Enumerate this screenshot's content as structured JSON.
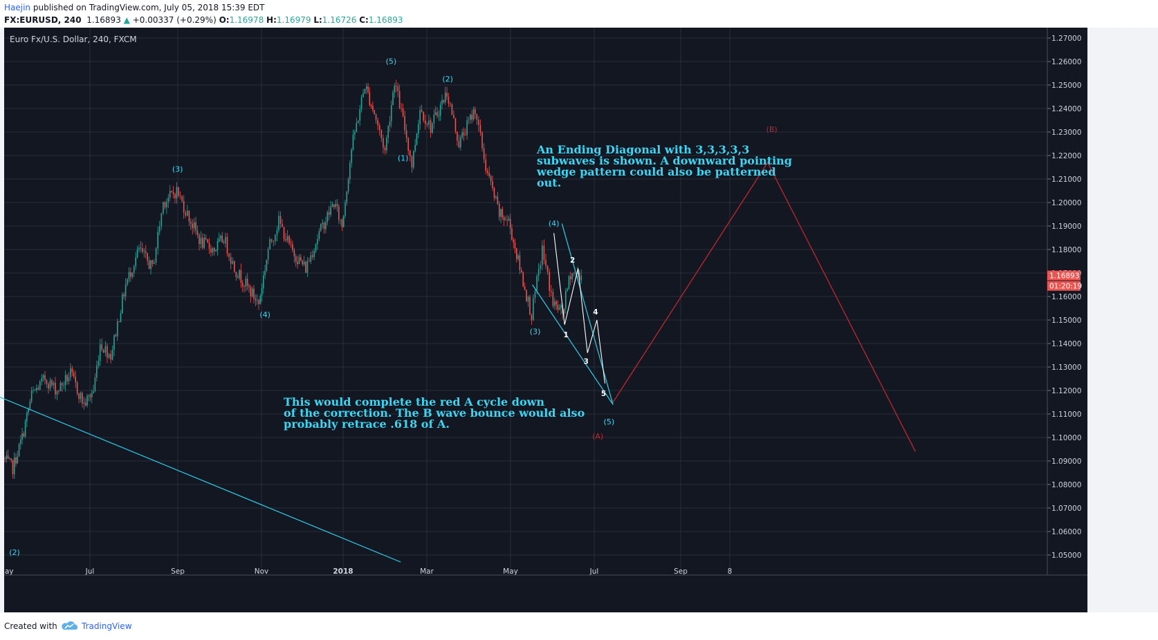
{
  "header": {
    "author": "Haejin",
    "published_text": "published on TradingView.com, July 05, 2018 15:39 EDT",
    "symbol": "FX:EURUSD, 240",
    "last": "1.16893",
    "change_arrow": "▲",
    "change": "+0.00337 (+0.29%)",
    "o_label": "O:",
    "o": "1.16978",
    "h_label": "H:",
    "h": "1.16979",
    "l_label": "L:",
    "l": "1.16726",
    "c_label": "C:",
    "c": "1.16893"
  },
  "chart_title": "Euro Fx/U.S. Dollar, 240, FXCM",
  "price_badge": "1.16893",
  "time_badge": "01:20:19",
  "annotations": {
    "ending_diagonal": "An Ending Diagonal with 3,3,3,3,3\nsubwaves is shown. A downward pointing\nwedge pattern could also be patterned\nout.",
    "red_cycle": "This would complete the red A cycle down\nof the correction. The B wave bounce would also\nprobably retrace .618 of A."
  },
  "footer": {
    "created_with": "Created with",
    "brand": "TradingView"
  },
  "colors": {
    "background": "#131722",
    "grid": "#2a2e39",
    "up": "#26a69a",
    "down": "#ef5350",
    "wave_label": "#3ad7f5",
    "trendline": "#2bc3de",
    "projection": "#c2262e",
    "subwave": "#ffffff",
    "badge": "#ef5350"
  },
  "chart_data": {
    "type": "candlestick",
    "title": "Euro Fx/U.S. Dollar, 240, FXCM",
    "timeframe": "240",
    "ylim": [
      1.045,
      1.275
    ],
    "y_ticks": [
      "1.05000",
      "1.06000",
      "1.07000",
      "1.08000",
      "1.09000",
      "1.10000",
      "1.11000",
      "1.12000",
      "1.13000",
      "1.14000",
      "1.15000",
      "1.16000",
      "1.17000",
      "1.18000",
      "1.19000",
      "1.20000",
      "1.21000",
      "1.22000",
      "1.23000",
      "1.24000",
      "1.25000",
      "1.26000",
      "1.27000"
    ],
    "x_ticks": [
      "ay",
      "Jul",
      "Sep",
      "Nov",
      "2018",
      "Mar",
      "May",
      "Jul",
      "Sep",
      "8"
    ],
    "price_path": [
      [
        "2017-05-01",
        1.091
      ],
      [
        "2017-05-08",
        1.087
      ],
      [
        "2017-05-15",
        1.1
      ],
      [
        "2017-05-22",
        1.118
      ],
      [
        "2017-06-01",
        1.125
      ],
      [
        "2017-06-10",
        1.12
      ],
      [
        "2017-06-20",
        1.127
      ],
      [
        "2017-06-30",
        1.114
      ],
      [
        "2017-07-07",
        1.12
      ],
      [
        "2017-07-12",
        1.14
      ],
      [
        "2017-07-20",
        1.135
      ],
      [
        "2017-07-31",
        1.165
      ],
      [
        "2017-08-10",
        1.18
      ],
      [
        "2017-08-20",
        1.172
      ],
      [
        "2017-08-28",
        1.2
      ],
      [
        "2017-09-07",
        1.205
      ],
      [
        "2017-09-15",
        1.195
      ],
      [
        "2017-09-25",
        1.183
      ],
      [
        "2017-10-05",
        1.18
      ],
      [
        "2017-10-12",
        1.185
      ],
      [
        "2017-10-20",
        1.172
      ],
      [
        "2017-11-07",
        1.157
      ],
      [
        "2017-11-14",
        1.18
      ],
      [
        "2017-11-22",
        1.192
      ],
      [
        "2017-12-01",
        1.18
      ],
      [
        "2017-12-12",
        1.172
      ],
      [
        "2017-12-22",
        1.187
      ],
      [
        "2018-01-02",
        1.2
      ],
      [
        "2018-01-08",
        1.19
      ],
      [
        "2018-01-15",
        1.223
      ],
      [
        "2018-01-25",
        1.25
      ],
      [
        "2018-02-01",
        1.238
      ],
      [
        "2018-02-09",
        1.222
      ],
      [
        "2018-02-16",
        1.252
      ],
      [
        "2018-02-25",
        1.228
      ],
      [
        "2018-03-01",
        1.216
      ],
      [
        "2018-03-07",
        1.24
      ],
      [
        "2018-03-15",
        1.232
      ],
      [
        "2018-03-27",
        1.247
      ],
      [
        "2018-04-05",
        1.225
      ],
      [
        "2018-04-17",
        1.24
      ],
      [
        "2018-04-25",
        1.215
      ],
      [
        "2018-05-05",
        1.195
      ],
      [
        "2018-05-12",
        1.192
      ],
      [
        "2018-05-19",
        1.175
      ],
      [
        "2018-05-29",
        1.152
      ],
      [
        "2018-06-06",
        1.18
      ],
      [
        "2018-06-14",
        1.157
      ],
      [
        "2018-06-21",
        1.153
      ],
      [
        "2018-06-27",
        1.17
      ],
      [
        "2018-07-05",
        1.169
      ]
    ],
    "waves": [
      {
        "label": "(2)",
        "date": "2017-04-25",
        "price": 1.05
      },
      {
        "label": "(3)",
        "date": "2017-09-07",
        "price": 1.209
      },
      {
        "label": "(4)",
        "date": "2017-11-07",
        "price": 1.157
      },
      {
        "label": "(5)",
        "date": "2018-02-16",
        "price": 1.256
      },
      {
        "label": "(1)",
        "date": "2018-03-01",
        "price": 1.216
      },
      {
        "label": "(2)",
        "date": "2018-03-27",
        "price": 1.248
      },
      {
        "label": "(3)",
        "date": "2018-05-29",
        "price": 1.151
      },
      {
        "label": "(4)",
        "date": "2018-06-14",
        "price": 1.187
      },
      {
        "label": "(5)",
        "date": "2018-07-25",
        "price": 1.115
      }
    ],
    "subwaves": [
      {
        "label": "1",
        "date": "2018-06-22",
        "price": 1.148
      },
      {
        "label": "2",
        "date": "2018-07-02",
        "price": 1.172
      },
      {
        "label": "3",
        "date": "2018-07-09",
        "price": 1.136
      },
      {
        "label": "4",
        "date": "2018-07-16",
        "price": 1.15
      },
      {
        "label": "5",
        "date": "2018-07-22",
        "price": 1.123
      }
    ],
    "projection": {
      "A": {
        "label": "(A)",
        "date": "2018-07-28",
        "price": 1.115
      },
      "B": {
        "label": "(B)",
        "date": "2018-11-20",
        "price": 1.217
      },
      "end": {
        "date": "2019-03-10",
        "price": 1.094
      }
    },
    "trendlines": [
      {
        "from": [
          "2017-04-20",
          1.119
        ],
        "to": [
          "2018-02-20",
          1.047
        ]
      },
      {
        "from": [
          "2018-05-29",
          1.165
        ],
        "to": [
          "2018-07-28",
          1.114
        ]
      },
      {
        "from": [
          "2018-06-20",
          1.191
        ],
        "to": [
          "2018-07-28",
          1.114
        ]
      }
    ],
    "last_price": 1.16893,
    "grid": true
  }
}
